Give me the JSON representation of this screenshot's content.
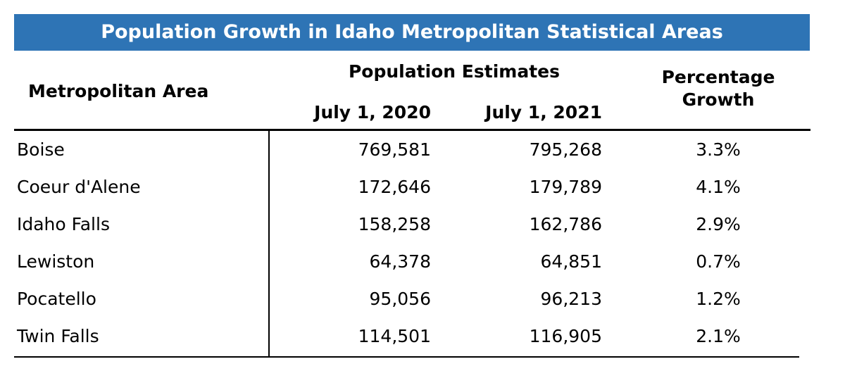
{
  "title": "Population Growth in Idaho Metropolitan Statistical Areas",
  "headers": {
    "metro_area": "Metropolitan Area",
    "population_estimates": "Population Estimates",
    "july_2020": "July 1, 2020",
    "july_2021": "July 1, 2021",
    "pct_line1": "Percentage",
    "pct_line2": "Growth"
  },
  "colors": {
    "title_bar": "#2e74b5",
    "title_text": "#ffffff"
  },
  "chart_data": {
    "type": "table",
    "title": "Population Growth in Idaho Metropolitan Statistical Areas",
    "columns": [
      "Metropolitan Area",
      "July 1, 2020",
      "July 1, 2021",
      "Percentage Growth"
    ],
    "rows": [
      {
        "area": "Boise",
        "pop_2020": "769,581",
        "pop_2021": "795,268",
        "growth": "3.3%"
      },
      {
        "area": "Coeur d'Alene",
        "pop_2020": "172,646",
        "pop_2021": "179,789",
        "growth": "4.1%"
      },
      {
        "area": "Idaho Falls",
        "pop_2020": "158,258",
        "pop_2021": "162,786",
        "growth": "2.9%"
      },
      {
        "area": "Lewiston",
        "pop_2020": "64,378",
        "pop_2021": "64,851",
        "growth": "0.7%"
      },
      {
        "area": "Pocatello",
        "pop_2020": "95,056",
        "pop_2021": "96,213",
        "growth": "1.2%"
      },
      {
        "area": "Twin Falls",
        "pop_2020": "114,501",
        "pop_2021": "116,905",
        "growth": "2.1%"
      }
    ]
  }
}
